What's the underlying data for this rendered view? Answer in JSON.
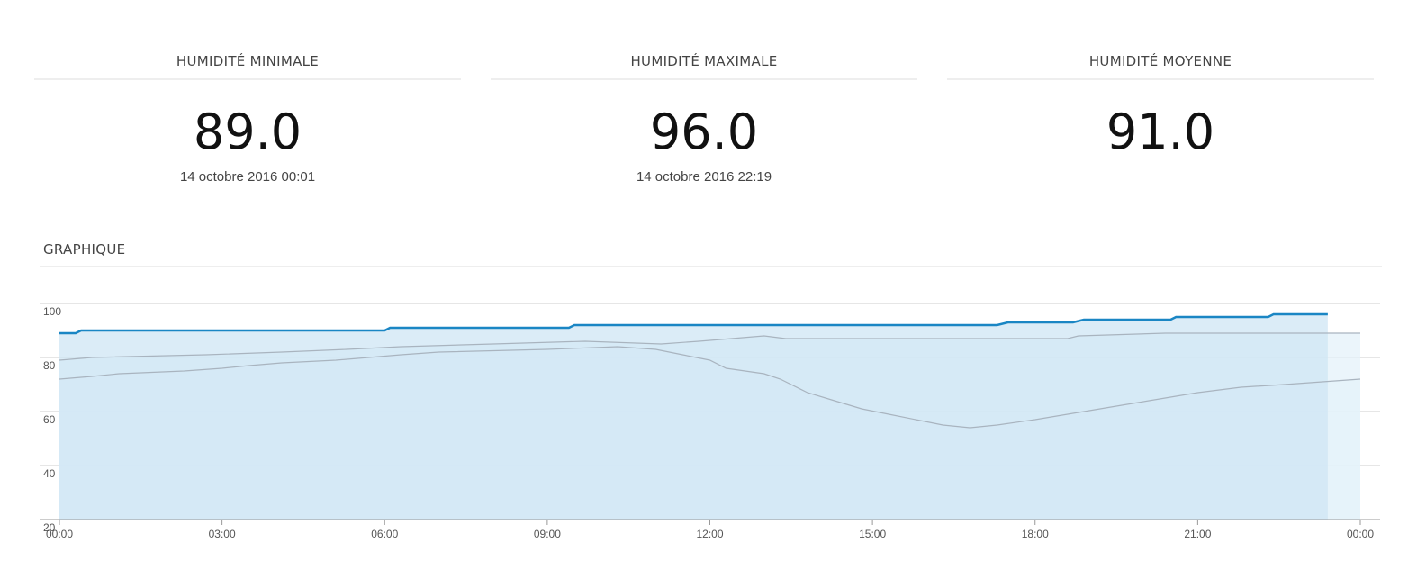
{
  "stats": [
    {
      "title": "HUMIDITÉ MINIMALE",
      "value": "89.0",
      "date": "14 octobre 2016 00:01"
    },
    {
      "title": "HUMIDITÉ MAXIMALE",
      "value": "96.0",
      "date": "14 octobre 2016 22:19"
    },
    {
      "title": "HUMIDITÉ MOYENNE",
      "value": "91.0"
    }
  ],
  "chart_data": {
    "type": "area",
    "title": "GRAPHIQUE",
    "xlim": [
      0,
      24
    ],
    "xticks": [
      {
        "value": 0,
        "label": "00:00"
      },
      {
        "value": 3,
        "label": "03:00"
      },
      {
        "value": 6,
        "label": "06:00"
      },
      {
        "value": 9,
        "label": "09:00"
      },
      {
        "value": 12,
        "label": "12:00"
      },
      {
        "value": 15,
        "label": "15:00"
      },
      {
        "value": 18,
        "label": "18:00"
      },
      {
        "value": 21,
        "label": "21:00"
      },
      {
        "value": 24,
        "label": "00:00"
      }
    ],
    "ylim": [
      20,
      100
    ],
    "yticks": [
      20,
      40,
      60,
      80,
      100
    ],
    "grid": true,
    "series": [
      {
        "color": "#a9b4bf",
        "fill": "#e4f1f9",
        "x": [
          0,
          0.6,
          1.1,
          2.3,
          3.0,
          3.5,
          4.1,
          5.1,
          6.3,
          7.0,
          9.0,
          10.3,
          11.0,
          11.5,
          12.0,
          12.3,
          13.0,
          13.3,
          13.8,
          14.3,
          14.8,
          15.3,
          15.8,
          16.3,
          16.8,
          17.3,
          18.0,
          18.6,
          19.2,
          19.8,
          20.4,
          21.0,
          21.8,
          22.6,
          23.3,
          24
        ],
        "values": [
          72,
          73,
          74,
          75,
          76,
          77,
          78,
          79,
          81,
          82,
          83,
          84,
          83,
          81,
          79,
          76,
          74,
          72,
          67,
          64,
          61,
          59,
          57,
          55,
          54,
          55,
          57,
          59,
          61,
          63,
          65,
          67,
          69,
          70,
          71,
          72
        ]
      },
      {
        "color": "#a9b4bf",
        "fill": "#e4f1f9",
        "x": [
          0,
          0.6,
          2.7,
          4.1,
          5.3,
          6.3,
          8.0,
          9.7,
          11.1,
          11.8,
          12.4,
          13.0,
          13.4,
          18.6,
          18.8,
          20.4,
          24
        ],
        "values": [
          79,
          80,
          81,
          82,
          83,
          84,
          85,
          86,
          85,
          86,
          87,
          88,
          87,
          87,
          88,
          89,
          89
        ]
      },
      {
        "color": "#1a86c4",
        "fill": "#cfe6f4",
        "x": [
          0,
          0.3,
          0.4,
          6.0,
          6.1,
          9.4,
          9.5,
          17.3,
          17.5,
          18.7,
          18.9,
          20.5,
          20.6,
          22.3,
          22.4,
          23.4
        ],
        "values": [
          89,
          89,
          90,
          90,
          91,
          91,
          92,
          92,
          93,
          93,
          94,
          94,
          95,
          95,
          96,
          96
        ]
      }
    ]
  }
}
